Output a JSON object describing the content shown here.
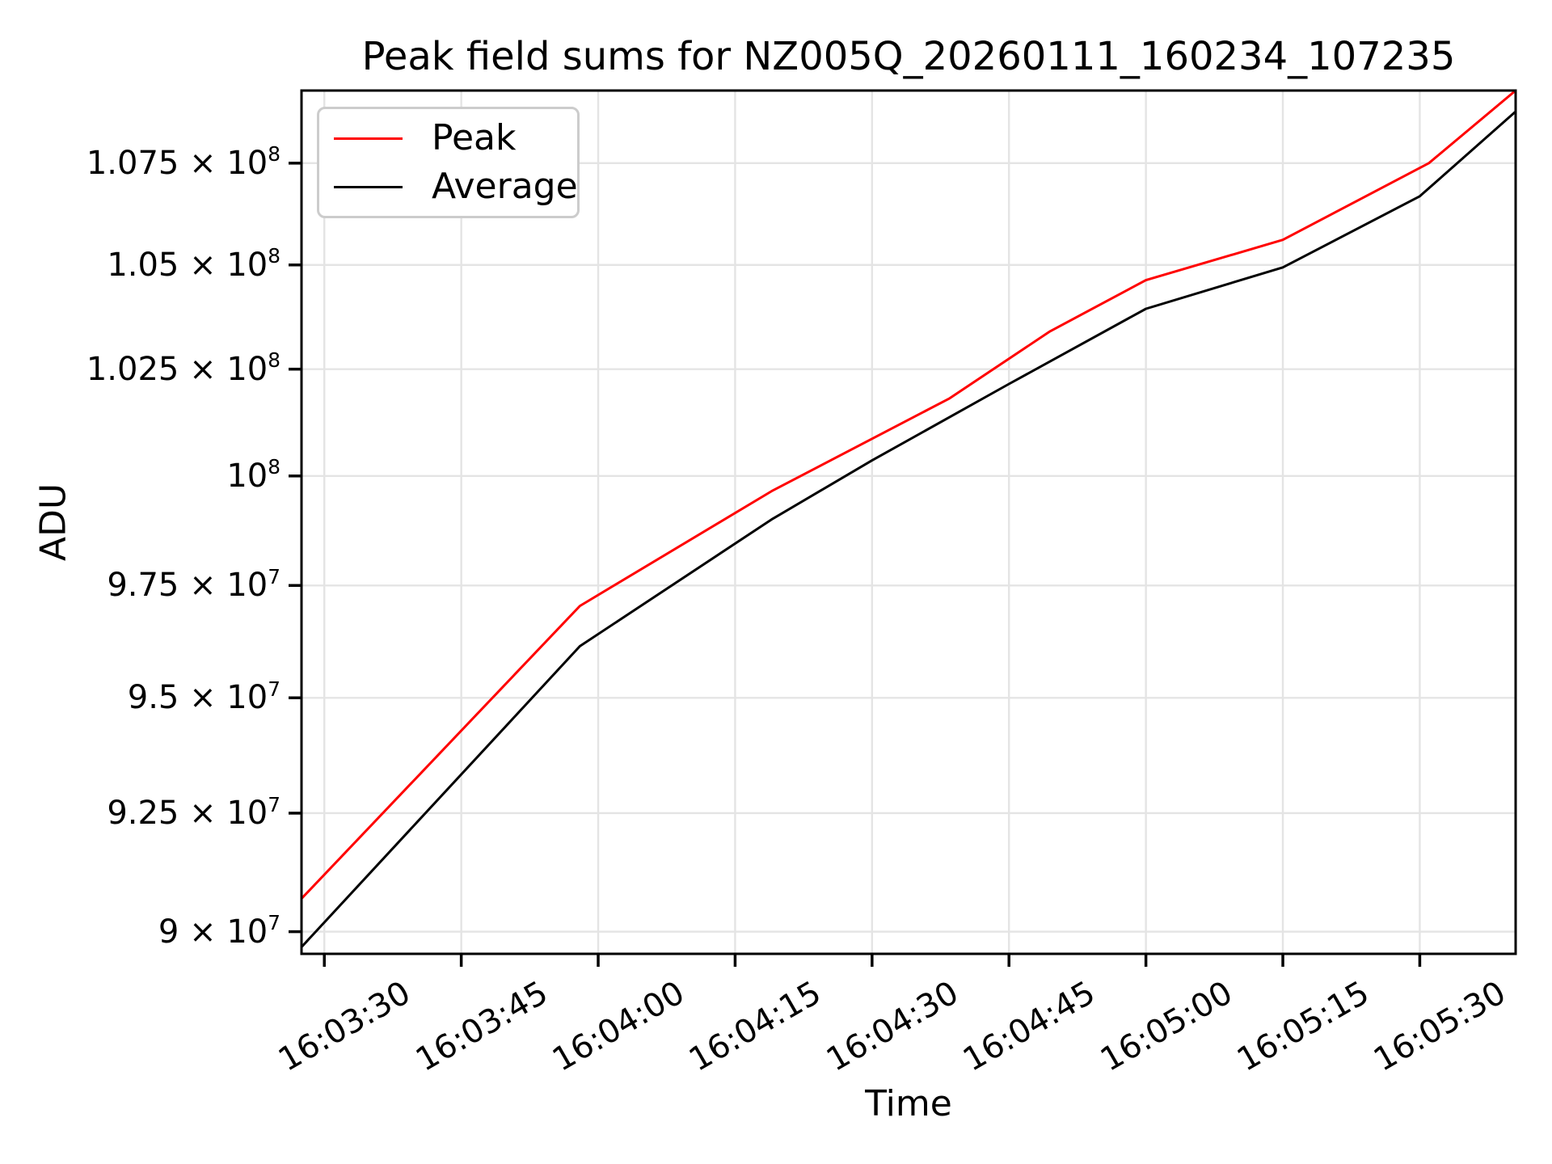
{
  "title": "Peak field sums for NZ005Q_20260111_160234_107235",
  "axes": {
    "x_label": "Time",
    "y_label": "ADU"
  },
  "legend": {
    "position": "upper left",
    "entries": [
      {
        "label": "Peak",
        "color": "#ff0000"
      },
      {
        "label": "Average",
        "color": "#000000"
      }
    ]
  },
  "colors": {
    "peak_line": "#ff0000",
    "average_line": "#000000",
    "grid": "#e4e4e4",
    "axes_frame": "#000000",
    "legend_border": "#cccccc",
    "background": "#ffffff"
  },
  "chart_data": {
    "type": "line",
    "title": "Peak field sums for NZ005Q_20260111_160234_107235",
    "xlabel": "Time",
    "ylabel": "ADU",
    "grid": true,
    "legend_position": "upper left",
    "y_scale": "log",
    "time_origin": "16:03:00",
    "x_range_seconds_after_origin": [
      27.5,
      160.5
    ],
    "y_range_adu": [
      89540000,
      109320000
    ],
    "x_ticks": [
      {
        "label": "16:03:30",
        "seconds": 30
      },
      {
        "label": "16:03:45",
        "seconds": 45
      },
      {
        "label": "16:04:00",
        "seconds": 60
      },
      {
        "label": "16:04:15",
        "seconds": 75
      },
      {
        "label": "16:04:30",
        "seconds": 90
      },
      {
        "label": "16:04:45",
        "seconds": 105
      },
      {
        "label": "16:05:00",
        "seconds": 120
      },
      {
        "label": "16:05:15",
        "seconds": 135
      },
      {
        "label": "16:05:30",
        "seconds": 150
      }
    ],
    "y_ticks": [
      {
        "label": "9 × 10⁷",
        "base": "9 × 10",
        "exp": "7",
        "value": 90000000
      },
      {
        "label": "9.25 × 10⁷",
        "base": "9.25 × 10",
        "exp": "7",
        "value": 92500000
      },
      {
        "label": "9.5 × 10⁷",
        "base": "9.5 × 10",
        "exp": "7",
        "value": 95000000
      },
      {
        "label": "9.75 × 10⁷",
        "base": "9.75 × 10",
        "exp": "7",
        "value": 97500000
      },
      {
        "label": "10⁸",
        "base": "10",
        "exp": "8",
        "value": 100000000
      },
      {
        "label": "1.025 × 10⁸",
        "base": "1.025 × 10",
        "exp": "8",
        "value": 102500000
      },
      {
        "label": "1.05 × 10⁸",
        "base": "1.05 × 10",
        "exp": "8",
        "value": 105000000
      },
      {
        "label": "1.075 × 10⁸",
        "base": "1.075 × 10",
        "exp": "8",
        "value": 107500000
      }
    ],
    "series": [
      {
        "name": "Peak",
        "color": "#ff0000",
        "points_seconds_value": [
          [
            27.5,
            90690000
          ],
          [
            58,
            97040000
          ],
          [
            79,
            99650000
          ],
          [
            98.5,
            101810000
          ],
          [
            109.5,
            103400000
          ],
          [
            120,
            104630000
          ],
          [
            135,
            105610000
          ],
          [
            151,
            107500000
          ],
          [
            160.5,
            109320000
          ]
        ]
      },
      {
        "name": "Average",
        "color": "#000000",
        "points_seconds_value": [
          [
            27.5,
            89680000
          ],
          [
            58,
            96140000
          ],
          [
            79,
            99000000
          ],
          [
            90,
            100360000
          ],
          [
            105,
            102150000
          ],
          [
            120,
            103940000
          ],
          [
            135,
            104940000
          ],
          [
            150,
            106680000
          ],
          [
            160.5,
            108790000
          ]
        ]
      }
    ]
  }
}
